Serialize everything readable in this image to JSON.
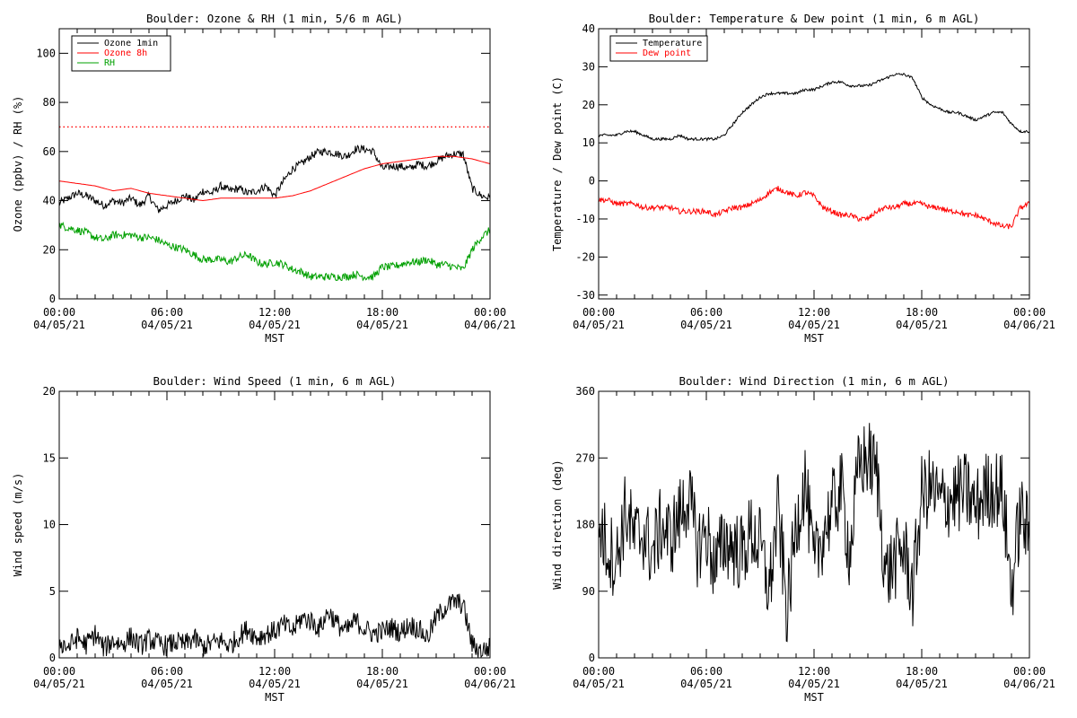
{
  "chart_data": [
    {
      "type": "line",
      "title": "Boulder: Ozone & RH (1 min, 5/6 m AGL)",
      "xlabel": "MST",
      "ylabel": "Ozone (ppbv) / RH (%)",
      "ylim": [
        0,
        110
      ],
      "yticks": [
        0,
        20,
        40,
        60,
        80,
        100
      ],
      "xticks": [
        {
          "time": "00:00",
          "date": "04/05/21"
        },
        {
          "time": "06:00",
          "date": "04/05/21"
        },
        {
          "time": "12:00",
          "date": "04/05/21"
        },
        {
          "time": "18:00",
          "date": "04/05/21"
        },
        {
          "time": "00:00",
          "date": "04/06/21"
        }
      ],
      "legend_position": "top-left",
      "reference_line": {
        "y": 70,
        "style": "dotted",
        "color": "#ff0000"
      },
      "series": [
        {
          "name": "Ozone 1min",
          "color": "#000000",
          "x_hours": [
            0,
            0.5,
            1,
            1.5,
            2,
            2.5,
            3,
            3.5,
            4,
            4.5,
            5,
            5.5,
            6,
            6.5,
            7,
            7.5,
            8,
            8.5,
            9,
            9.5,
            10,
            10.5,
            11,
            11.5,
            12,
            12.5,
            13,
            13.5,
            14,
            14.5,
            15,
            15.5,
            16,
            16.5,
            17,
            17.5,
            18,
            18.5,
            19,
            19.5,
            20,
            20.5,
            21,
            21.5,
            22,
            22.5,
            23,
            23.5,
            24
          ],
          "values": [
            39,
            41,
            43,
            42,
            40,
            38,
            40,
            39,
            41,
            38,
            42,
            36,
            38,
            40,
            42,
            40,
            44,
            43,
            46,
            44,
            45,
            43,
            44,
            46,
            42,
            48,
            53,
            55,
            58,
            60,
            60,
            59,
            58,
            61,
            61,
            60,
            53,
            54,
            54,
            53,
            55,
            54,
            56,
            58,
            59,
            59,
            45,
            42,
            41
          ]
        },
        {
          "name": "Ozone 8h",
          "color": "#ff0000",
          "x_hours": [
            0,
            1,
            2,
            3,
            4,
            5,
            6,
            7,
            8,
            9,
            10,
            11,
            12,
            13,
            14,
            15,
            16,
            17,
            18,
            19,
            20,
            21,
            22,
            23,
            24
          ],
          "values": [
            48,
            47,
            46,
            44,
            45,
            43,
            42,
            41,
            40,
            41,
            41,
            41,
            41,
            42,
            44,
            47,
            50,
            53,
            55,
            56,
            57,
            58,
            58,
            57,
            55
          ]
        },
        {
          "name": "RH",
          "color": "#00a000",
          "x_hours": [
            0,
            0.5,
            1,
            1.5,
            2,
            2.5,
            3,
            3.5,
            4,
            4.5,
            5,
            5.5,
            6,
            6.5,
            7,
            7.5,
            8,
            8.5,
            9,
            9.5,
            10,
            10.5,
            11,
            11.5,
            12,
            12.5,
            13,
            13.5,
            14,
            14.5,
            15,
            15.5,
            16,
            16.5,
            17,
            17.5,
            18,
            18.5,
            19,
            19.5,
            20,
            20.5,
            21,
            21.5,
            22,
            22.5,
            23,
            23.5,
            24
          ],
          "values": [
            30,
            29,
            28,
            27,
            25,
            24,
            26,
            26,
            26,
            25,
            25,
            24,
            22,
            21,
            20,
            18,
            16,
            16,
            16,
            15,
            17,
            18,
            15,
            14,
            15,
            14,
            12,
            11,
            9,
            9,
            9,
            9,
            9,
            10,
            9,
            9,
            13,
            13,
            14,
            15,
            15,
            16,
            14,
            14,
            13,
            12,
            20,
            25,
            28
          ]
        }
      ]
    },
    {
      "type": "line",
      "title": "Boulder: Temperature & Dew point (1 min, 6 m AGL)",
      "xlabel": "MST",
      "ylabel": "Temperature / Dew point (C)",
      "ylim": [
        -31,
        40
      ],
      "yticks": [
        -30,
        -20,
        -10,
        0,
        10,
        20,
        30,
        40
      ],
      "xticks": [
        {
          "time": "00:00",
          "date": "04/05/21"
        },
        {
          "time": "06:00",
          "date": "04/05/21"
        },
        {
          "time": "12:00",
          "date": "04/05/21"
        },
        {
          "time": "18:00",
          "date": "04/05/21"
        },
        {
          "time": "00:00",
          "date": "04/06/21"
        }
      ],
      "legend_position": "top-left",
      "series": [
        {
          "name": "Temperature",
          "color": "#000000",
          "x_hours": [
            0,
            0.5,
            1,
            1.5,
            2,
            2.5,
            3,
            3.5,
            4,
            4.5,
            5,
            5.5,
            6,
            6.5,
            7,
            7.5,
            8,
            8.5,
            9,
            9.5,
            10,
            10.5,
            11,
            11.5,
            12,
            12.5,
            13,
            13.5,
            14,
            14.5,
            15,
            15.5,
            16,
            16.5,
            17,
            17.5,
            18,
            18.5,
            19,
            19.5,
            20,
            20.5,
            21,
            21.5,
            22,
            22.5,
            23,
            23.5,
            24
          ],
          "values": [
            12,
            12,
            12,
            13,
            13,
            12,
            11,
            11,
            11,
            12,
            11,
            11,
            11,
            11,
            12,
            15,
            18,
            20,
            22,
            23,
            23,
            23,
            23,
            24,
            24,
            25,
            26,
            26,
            25,
            25,
            25,
            26,
            27,
            28,
            28,
            27,
            22,
            20,
            19,
            18,
            18,
            17,
            16,
            17,
            18,
            18,
            15,
            13,
            13
          ]
        },
        {
          "name": "Dew point",
          "color": "#ff0000",
          "x_hours": [
            0,
            0.5,
            1,
            1.5,
            2,
            2.5,
            3,
            3.5,
            4,
            4.5,
            5,
            5.5,
            6,
            6.5,
            7,
            7.5,
            8,
            8.5,
            9,
            9.5,
            10,
            10.5,
            11,
            11.5,
            12,
            12.5,
            13,
            13.5,
            14,
            14.5,
            15,
            15.5,
            16,
            16.5,
            17,
            17.5,
            18,
            18.5,
            19,
            19.5,
            20,
            20.5,
            21,
            21.5,
            22,
            22.5,
            23,
            23.5,
            24
          ],
          "values": [
            -5,
            -5,
            -6,
            -6,
            -6,
            -7,
            -7,
            -7,
            -7,
            -8,
            -8,
            -8,
            -8,
            -9,
            -8,
            -7,
            -7,
            -6,
            -5,
            -3,
            -2,
            -3,
            -4,
            -3,
            -4,
            -7,
            -8,
            -9,
            -9,
            -10,
            -10,
            -8,
            -7,
            -7,
            -6,
            -6,
            -6,
            -7,
            -7,
            -8,
            -8,
            -9,
            -9,
            -10,
            -11,
            -12,
            -12,
            -7,
            -6
          ]
        }
      ]
    },
    {
      "type": "line",
      "title": "Boulder: Wind Speed (1 min, 6 m AGL)",
      "xlabel": "MST",
      "ylabel": "Wind speed (m/s)",
      "ylim": [
        0,
        20
      ],
      "yticks": [
        0,
        5,
        10,
        15,
        20
      ],
      "xticks": [
        {
          "time": "00:00",
          "date": "04/05/21"
        },
        {
          "time": "06:00",
          "date": "04/05/21"
        },
        {
          "time": "12:00",
          "date": "04/05/21"
        },
        {
          "time": "18:00",
          "date": "04/05/21"
        },
        {
          "time": "00:00",
          "date": "04/06/21"
        }
      ],
      "series": [
        {
          "color": "#000000",
          "x_hours": [
            0,
            0.5,
            1,
            1.5,
            2,
            2.5,
            3,
            3.5,
            4,
            4.5,
            5,
            5.5,
            6,
            6.5,
            7,
            7.5,
            8,
            8.5,
            9,
            9.5,
            10,
            10.5,
            11,
            11.5,
            12,
            12.5,
            13,
            13.5,
            14,
            14.5,
            15,
            15.5,
            16,
            16.5,
            17,
            17.5,
            18,
            18.5,
            19,
            19.5,
            20,
            20.5,
            21,
            21.5,
            22,
            22.5,
            23,
            23.5,
            24
          ],
          "values": [
            1.2,
            0.8,
            1.5,
            1.0,
            1.8,
            0.7,
            1.3,
            1.0,
            1.6,
            0.9,
            1.4,
            1.1,
            0.9,
            1.2,
            1.0,
            1.5,
            0.8,
            1.1,
            1.3,
            0.9,
            1.6,
            2.2,
            1.5,
            1.8,
            2.0,
            2.5,
            2.0,
            3.0,
            2.8,
            2.2,
            3.5,
            2.5,
            2.0,
            2.8,
            2.2,
            1.8,
            2.0,
            2.3,
            1.9,
            2.5,
            2.2,
            1.5,
            3.0,
            3.8,
            4.2,
            4.0,
            1.0,
            0.5,
            0.8
          ]
        }
      ]
    },
    {
      "type": "line",
      "title": "Boulder: Wind Direction (1 min, 6 m AGL)",
      "xlabel": "MST",
      "ylabel": "Wind direction (deg)",
      "ylim": [
        0,
        360
      ],
      "yticks": [
        0,
        90,
        180,
        270,
        360
      ],
      "xticks": [
        {
          "time": "00:00",
          "date": "04/05/21"
        },
        {
          "time": "06:00",
          "date": "04/05/21"
        },
        {
          "time": "12:00",
          "date": "04/05/21"
        },
        {
          "time": "18:00",
          "date": "04/05/21"
        },
        {
          "time": "00:00",
          "date": "04/06/21"
        }
      ],
      "series": [
        {
          "color": "#000000",
          "x_hours": [
            0,
            0.5,
            1,
            1.5,
            2,
            2.5,
            3,
            3.5,
            4,
            4.5,
            5,
            5.5,
            6,
            6.5,
            7,
            7.5,
            8,
            8.5,
            9,
            9.5,
            10,
            10.5,
            11,
            11.5,
            12,
            12.5,
            13,
            13.5,
            14,
            14.5,
            15,
            15.5,
            16,
            16.5,
            17,
            17.5,
            18,
            18.5,
            19,
            19.5,
            20,
            20.5,
            21,
            21.5,
            22,
            22.5,
            23,
            23.5,
            24
          ],
          "values": [
            180,
            150,
            130,
            200,
            160,
            170,
            140,
            180,
            160,
            190,
            220,
            150,
            170,
            120,
            160,
            150,
            140,
            170,
            150,
            90,
            200,
            60,
            180,
            240,
            120,
            170,
            200,
            230,
            140,
            260,
            270,
            250,
            110,
            130,
            150,
            90,
            220,
            230,
            210,
            215,
            220,
            225,
            200,
            225,
            230,
            225,
            90,
            200,
            160
          ]
        }
      ]
    }
  ],
  "legends": [
    [
      "Ozone 1min",
      "Ozone 8h",
      "RH"
    ],
    [
      "Temperature",
      "Dew point"
    ]
  ]
}
